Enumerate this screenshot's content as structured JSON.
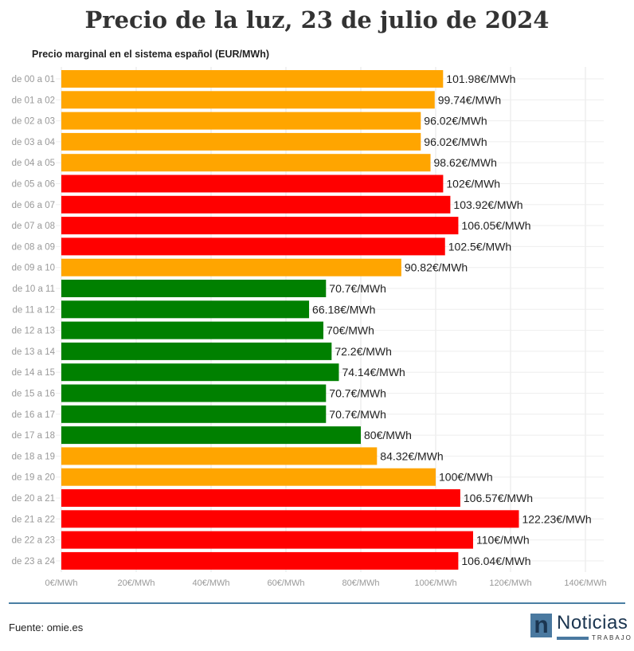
{
  "title": "Precio de la luz, 23 de julio de 2024",
  "source": "Fuente: omie.es",
  "logo": {
    "mark": "n",
    "name": "Noticias",
    "sub": "TRABAJO"
  },
  "colors": {
    "high": "#ff0000",
    "mid": "#ffa500",
    "low": "#008000"
  },
  "chart_data": {
    "type": "bar",
    "orientation": "horizontal",
    "title": "Precio marginal en el sistema español (EUR/MWh)",
    "categories": [
      "de 00 a 01",
      "de 01 a 02",
      "de 02 a 03",
      "de 03 a 04",
      "de 04 a 05",
      "de 05 a 06",
      "de 06 a 07",
      "de 07 a 08",
      "de 08 a 09",
      "de 09 a 10",
      "de 10 a 11",
      "de 11 a 12",
      "de 12 a 13",
      "de 13 a 14",
      "de 14 a 15",
      "de 15 a 16",
      "de 16 a 17",
      "de 17 a 18",
      "de 18 a 19",
      "de 19 a 20",
      "de 20 a 21",
      "de 21 a 22",
      "de 22 a 23",
      "de 23 a 24"
    ],
    "values": [
      101.98,
      99.74,
      96.02,
      96.02,
      98.62,
      102,
      103.92,
      106.05,
      102.5,
      90.82,
      70.7,
      66.18,
      70,
      72.2,
      74.14,
      70.7,
      70.7,
      80,
      84.32,
      100,
      106.57,
      122.23,
      110,
      106.04
    ],
    "data_labels": [
      "101.98€/MWh",
      "99.74€/MWh",
      "96.02€/MWh",
      "96.02€/MWh",
      "98.62€/MWh",
      "102€/MWh",
      "103.92€/MWh",
      "106.05€/MWh",
      "102.5€/MWh",
      "90.82€/MWh",
      "70.7€/MWh",
      "66.18€/MWh",
      "70€/MWh",
      "72.2€/MWh",
      "74.14€/MWh",
      "70.7€/MWh",
      "70.7€/MWh",
      "80€/MWh",
      "84.32€/MWh",
      "100€/MWh",
      "106.57€/MWh",
      "122.23€/MWh",
      "110€/MWh",
      "106.04€/MWh"
    ],
    "bar_colors": [
      "mid",
      "mid",
      "mid",
      "mid",
      "mid",
      "high",
      "high",
      "high",
      "high",
      "mid",
      "low",
      "low",
      "low",
      "low",
      "low",
      "low",
      "low",
      "low",
      "mid",
      "mid",
      "high",
      "high",
      "high",
      "high"
    ],
    "xlim": [
      0,
      140
    ],
    "xticks": [
      0,
      20,
      40,
      60,
      80,
      100,
      120,
      140
    ],
    "xtick_labels": [
      "0€/MWh",
      "20€/MWh",
      "40€/MWh",
      "60€/MWh",
      "80€/MWh",
      "100€/MWh",
      "120€/MWh",
      "140€/MWh"
    ],
    "grid": true
  }
}
